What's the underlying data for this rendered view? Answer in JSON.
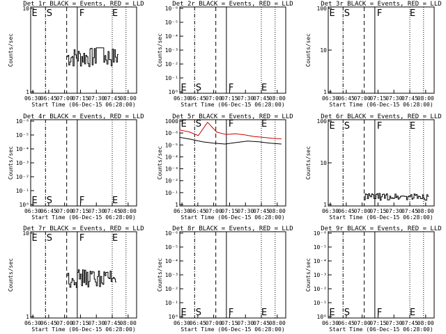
{
  "figure": {
    "xlabel": "Start Time (06-Dec-15 06:28:00)",
    "ylabel": "Counts/sec",
    "x_tick_labels": [
      "06:30",
      "06:45",
      "07:00",
      "07:15",
      "07:30",
      "07:45",
      "08:00"
    ],
    "marker_letters": [
      "E",
      "S",
      "F",
      "E"
    ]
  },
  "chart_data": [
    {
      "type": "line",
      "title": "Det 1r BLACK = Events, RED = LLD",
      "xlabel": "Start Time (06-Dec-15 06:28:00)",
      "ylabel": "Counts/sec",
      "yscale": "log",
      "y_ticks": [
        "10",
        "1"
      ],
      "xlim": [
        "06:28",
        "08:08"
      ],
      "vlines": {
        "dotted": [
          "06:28",
          "07:45",
          "07:58"
        ],
        "dash_dot": [
          "06:42"
        ],
        "dashed": [
          "07:02"
        ],
        "solid": [
          "07:12"
        ]
      },
      "series": [
        {
          "color": "#000000",
          "segment": [
            "07:02",
            "07:50"
          ],
          "approx_values": [
            1.2,
            3.5
          ],
          "peak_near": "07:33"
        }
      ]
    },
    {
      "type": "line",
      "title": "Det 2r BLACK = Events, RED = LLD",
      "xlabel": "Start Time (06-Dec-15 06:28:00)",
      "ylabel": "Counts/sec",
      "yscale": "log",
      "y_ticks": [
        "10⁻⁶",
        "10⁻⁵",
        "10⁻⁴",
        "10⁻³",
        "10⁻²",
        "10⁻¹",
        "10⁰"
      ],
      "xlim": [
        "06:28",
        "08:08"
      ],
      "vlines": {
        "dotted": [
          "06:28",
          "07:45",
          "07:58"
        ],
        "dash_dot": [
          "06:42"
        ],
        "dashed": [
          "07:02"
        ],
        "solid": [
          "07:12"
        ]
      },
      "series": []
    },
    {
      "type": "line",
      "title": "Det 3r BLACK = Events, RED = LLD",
      "xlabel": "Start Time (06-Dec-15 06:28:00)",
      "ylabel": "Counts/sec",
      "yscale": "log",
      "y_ticks": [
        "100",
        "10",
        "1"
      ],
      "xlim": [
        "06:28",
        "08:08"
      ],
      "vlines": {
        "dotted": [
          "06:28",
          "07:45",
          "07:58"
        ],
        "dash_dot": [
          "06:42"
        ],
        "dashed": [
          "07:02"
        ],
        "solid": [
          "07:12"
        ]
      },
      "series": []
    },
    {
      "type": "line",
      "title": "Det 4r BLACK = Events, RED = LLD",
      "xlabel": "Start Time (06-Dec-15 06:28:00)",
      "ylabel": "Counts/sec",
      "yscale": "log",
      "y_ticks": [
        "10⁻⁶",
        "10⁻⁵",
        "10⁻⁴",
        "10⁻³",
        "10⁻²",
        "10⁻¹",
        "10⁰"
      ],
      "xlim": [
        "06:28",
        "08:08"
      ],
      "vlines": {
        "dotted": [
          "06:28",
          "07:45",
          "07:58"
        ],
        "dash_dot": [
          "06:42"
        ],
        "dashed": [
          "07:02"
        ],
        "solid": [
          "07:12"
        ]
      },
      "series": []
    },
    {
      "type": "line",
      "title": "Det 5r BLACK = Events, RED = LLD",
      "xlabel": "Start Time (06-Dec-15 06:28:00)",
      "ylabel": "Counts/sec",
      "yscale": "log",
      "y_ticks": [
        "1000",
        "10⁻⁶",
        "10⁻⁵",
        "10⁻⁴",
        "10⁻³",
        "10⁻²",
        "10⁻¹",
        "1"
      ],
      "xlim": [
        "06:28",
        "08:08"
      ],
      "vlines": {
        "dotted": [
          "06:28",
          "07:45",
          "07:58"
        ],
        "dash_dot": [
          "06:42"
        ],
        "dashed": [
          "07:02"
        ],
        "solid": [
          "07:12"
        ]
      },
      "series": [
        {
          "color": "#cc0000",
          "label_hint": "LLD",
          "approx_values_per_decade_units": [
            480,
            410,
            300,
            900,
            400,
            330,
            350,
            320,
            280,
            260,
            240,
            230
          ]
        },
        {
          "color": "#000000",
          "label_hint": "Events",
          "approx_values_per_decade_units": [
            260,
            220,
            180,
            160,
            150,
            170,
            190,
            180,
            160,
            150
          ]
        }
      ]
    },
    {
      "type": "line",
      "title": "Det 6r BLACK = Events, RED = LLD",
      "xlabel": "Start Time (06-Dec-15 06:28:00)",
      "ylabel": "Counts/sec",
      "yscale": "log",
      "y_ticks": [
        "100",
        "10",
        "1"
      ],
      "xlim": [
        "06:28",
        "08:08"
      ],
      "vlines": {
        "dotted": [
          "06:28",
          "07:45",
          "07:58"
        ],
        "dash_dot": [
          "06:42"
        ],
        "dashed": [
          "07:02"
        ],
        "solid": [
          "07:12"
        ]
      },
      "series": [
        {
          "color": "#000000",
          "segment": [
            "07:02",
            "08:02"
          ],
          "approx_values": [
            1.0,
            2.0
          ]
        }
      ]
    },
    {
      "type": "line",
      "title": "Det 7r BLACK = Events, RED = LLD",
      "xlabel": "Start Time (06-Dec-15 06:28:00)",
      "ylabel": "Counts/sec",
      "yscale": "log",
      "y_ticks": [
        "10",
        "1"
      ],
      "xlim": [
        "06:28",
        "08:08"
      ],
      "vlines": {
        "dotted": [
          "06:28",
          "07:45",
          "07:58"
        ],
        "dash_dot": [
          "06:42"
        ],
        "dashed": [
          "07:02"
        ],
        "solid": [
          "07:12"
        ]
      },
      "series": [
        {
          "color": "#000000",
          "segment": [
            "07:02",
            "07:48"
          ],
          "approx_values": [
            1.5,
            3.8
          ]
        }
      ]
    },
    {
      "type": "line",
      "title": "Det 8r BLACK = Events, RED = LLD",
      "xlabel": "Start Time (06-Dec-15 06:28:00)",
      "ylabel": "Counts/sec",
      "yscale": "log",
      "y_ticks": [
        "10⁻⁶",
        "10⁻⁵",
        "10⁻⁴",
        "10⁻³",
        "10⁻²",
        "10⁻¹",
        "10⁰"
      ],
      "xlim": [
        "06:28",
        "08:08"
      ],
      "vlines": {
        "dotted": [
          "06:28",
          "07:45",
          "07:58"
        ],
        "dash_dot": [
          "06:42"
        ],
        "dashed": [
          "07:02"
        ],
        "solid": [
          "07:12"
        ]
      },
      "series": []
    },
    {
      "type": "line",
      "title": "Det 9r BLACK = Events, RED = LLD",
      "xlabel": "Start Time (06-Dec-15 06:28:00)",
      "ylabel": "Counts/sec",
      "yscale": "log",
      "y_ticks": [
        "10⁻⁶",
        "10⁻⁵",
        "10⁻⁴",
        "10⁻³",
        "10⁻²",
        "10⁻¹",
        "10⁰"
      ],
      "xlim": [
        "06:28",
        "08:08"
      ],
      "vlines": {
        "dotted": [
          "06:28",
          "07:45",
          "07:58"
        ],
        "dash_dot": [
          "06:42"
        ],
        "dashed": [
          "07:02"
        ],
        "solid": [
          "07:12"
        ]
      },
      "series": []
    }
  ]
}
